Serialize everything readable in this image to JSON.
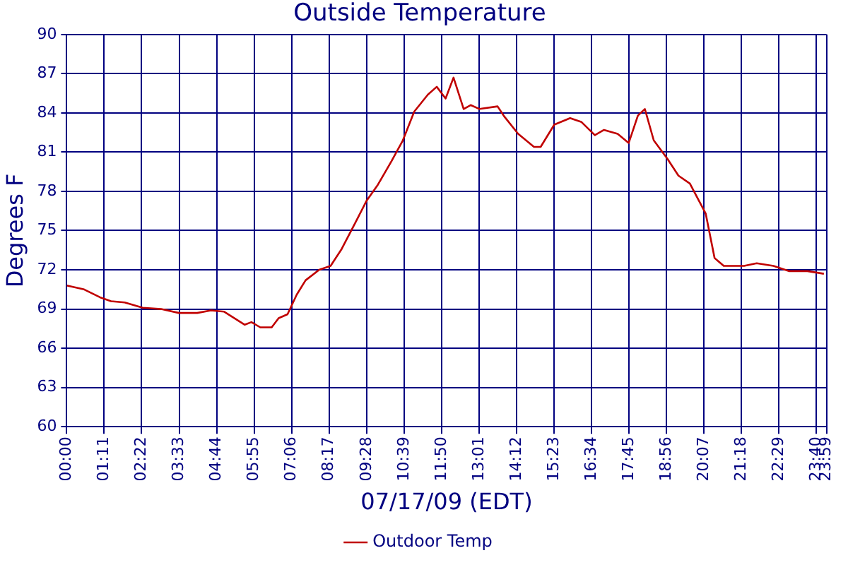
{
  "chart_data": {
    "type": "line",
    "title": "Outside Temperature",
    "xlabel": "07/17/09 (EDT)",
    "ylabel": "Degrees F",
    "x": [
      0,
      0.55,
      1.05,
      1.4,
      1.83,
      2.4,
      2.98,
      3.54,
      4.12,
      4.55,
      4.97,
      5.62,
      5.83,
      6.11,
      6.47,
      6.69,
      6.97,
      7.26,
      7.54,
      7.97,
      8.33,
      8.68,
      9.11,
      9.47,
      9.82,
      10.25,
      10.61,
      10.97,
      11.4,
      11.68,
      11.96,
      12.21,
      12.53,
      12.75,
      13.03,
      13.6,
      13.82,
      14.25,
      14.75,
      14.96,
      15.39,
      15.89,
      16.25,
      16.67,
      16.96,
      17.39,
      17.74,
      18.03,
      18.25,
      18.53,
      18.96,
      19.31,
      19.67,
      20.17,
      20.45,
      20.74,
      21.38,
      21.78,
      22.31,
      22.81,
      23.38,
      23.9
    ],
    "series": [
      {
        "name": "Outdoor Temp",
        "color": "#c00000",
        "values": [
          70.8,
          70.5,
          69.9,
          69.6,
          69.5,
          69.1,
          69.0,
          68.7,
          68.7,
          68.9,
          68.8,
          67.8,
          68.0,
          67.6,
          67.6,
          68.3,
          68.6,
          70.1,
          71.2,
          72.0,
          72.3,
          73.6,
          75.6,
          77.3,
          78.5,
          80.3,
          81.9,
          84.1,
          85.4,
          86.0,
          85.1,
          86.7,
          84.3,
          84.6,
          84.3,
          84.5,
          83.7,
          82.4,
          81.4,
          81.4,
          83.1,
          83.6,
          83.3,
          82.3,
          82.7,
          82.4,
          81.7,
          83.8,
          84.3,
          81.9,
          80.5,
          79.2,
          78.6,
          76.3,
          72.9,
          72.3,
          72.3,
          72.5,
          72.3,
          71.9,
          71.9,
          71.7
        ]
      }
    ],
    "xlim": [
      0,
      23.9833
    ],
    "xticks": [
      {
        "value": 0,
        "label": "00:00"
      },
      {
        "value": 1.1833,
        "label": "01:11"
      },
      {
        "value": 2.3667,
        "label": "02:22"
      },
      {
        "value": 3.55,
        "label": "03:33"
      },
      {
        "value": 4.7333,
        "label": "04:44"
      },
      {
        "value": 5.9167,
        "label": "05:55"
      },
      {
        "value": 7.1,
        "label": "07:06"
      },
      {
        "value": 8.2833,
        "label": "08:17"
      },
      {
        "value": 9.4667,
        "label": "09:28"
      },
      {
        "value": 10.65,
        "label": "10:39"
      },
      {
        "value": 11.8333,
        "label": "11:50"
      },
      {
        "value": 13.0167,
        "label": "13:01"
      },
      {
        "value": 14.2,
        "label": "14:12"
      },
      {
        "value": 15.3833,
        "label": "15:23"
      },
      {
        "value": 16.5667,
        "label": "16:34"
      },
      {
        "value": 17.75,
        "label": "17:45"
      },
      {
        "value": 18.9333,
        "label": "18:56"
      },
      {
        "value": 20.1167,
        "label": "20:07"
      },
      {
        "value": 21.3,
        "label": "21:18"
      },
      {
        "value": 22.4833,
        "label": "22:29"
      },
      {
        "value": 23.6667,
        "label": "23:40"
      },
      {
        "value": 23.9833,
        "label": "23:59"
      }
    ],
    "ylim": [
      60,
      90
    ],
    "yticks": [
      60,
      63,
      66,
      69,
      72,
      75,
      78,
      81,
      84,
      87,
      90
    ],
    "grid": true,
    "legend": "bottom",
    "marker": "none",
    "line_style": "solid"
  }
}
